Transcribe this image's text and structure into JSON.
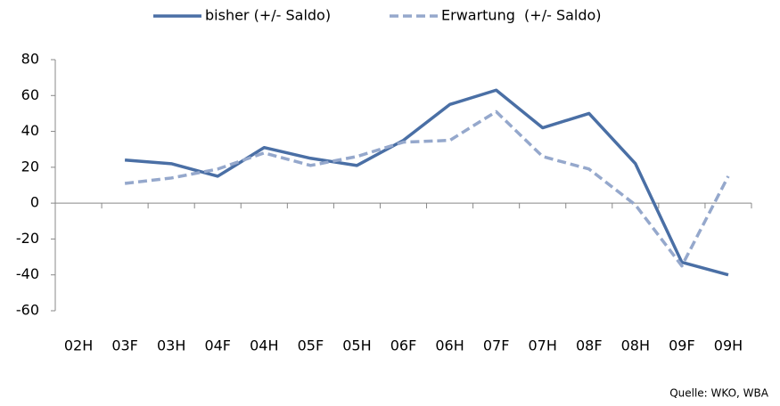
{
  "chart_data": {
    "type": "line",
    "categories": [
      "02H",
      "03F",
      "03H",
      "04F",
      "04H",
      "05F",
      "05H",
      "06F",
      "06H",
      "07F",
      "07H",
      "08F",
      "08H",
      "09F",
      "09H"
    ],
    "series": [
      {
        "name": "bisher (+/- Saldo)",
        "color": "#4a6fa5",
        "dash": false,
        "values": [
          null,
          24,
          22,
          15,
          31,
          25,
          21,
          35,
          55,
          63,
          42,
          50,
          22,
          -33,
          -40
        ]
      },
      {
        "name": "Erwartung  (+/- Saldo)",
        "color": "#95a8cc",
        "dash": true,
        "values": [
          null,
          11,
          14,
          19,
          28,
          21,
          26,
          34,
          35,
          51,
          26,
          19,
          -1,
          -35,
          15
        ]
      }
    ],
    "ylim": [
      -60,
      80
    ],
    "yticks": [
      -60,
      -40,
      -20,
      0,
      20,
      40,
      60,
      80
    ],
    "grid": false,
    "legend": "top",
    "source": "Quelle: WKO, WBA"
  }
}
